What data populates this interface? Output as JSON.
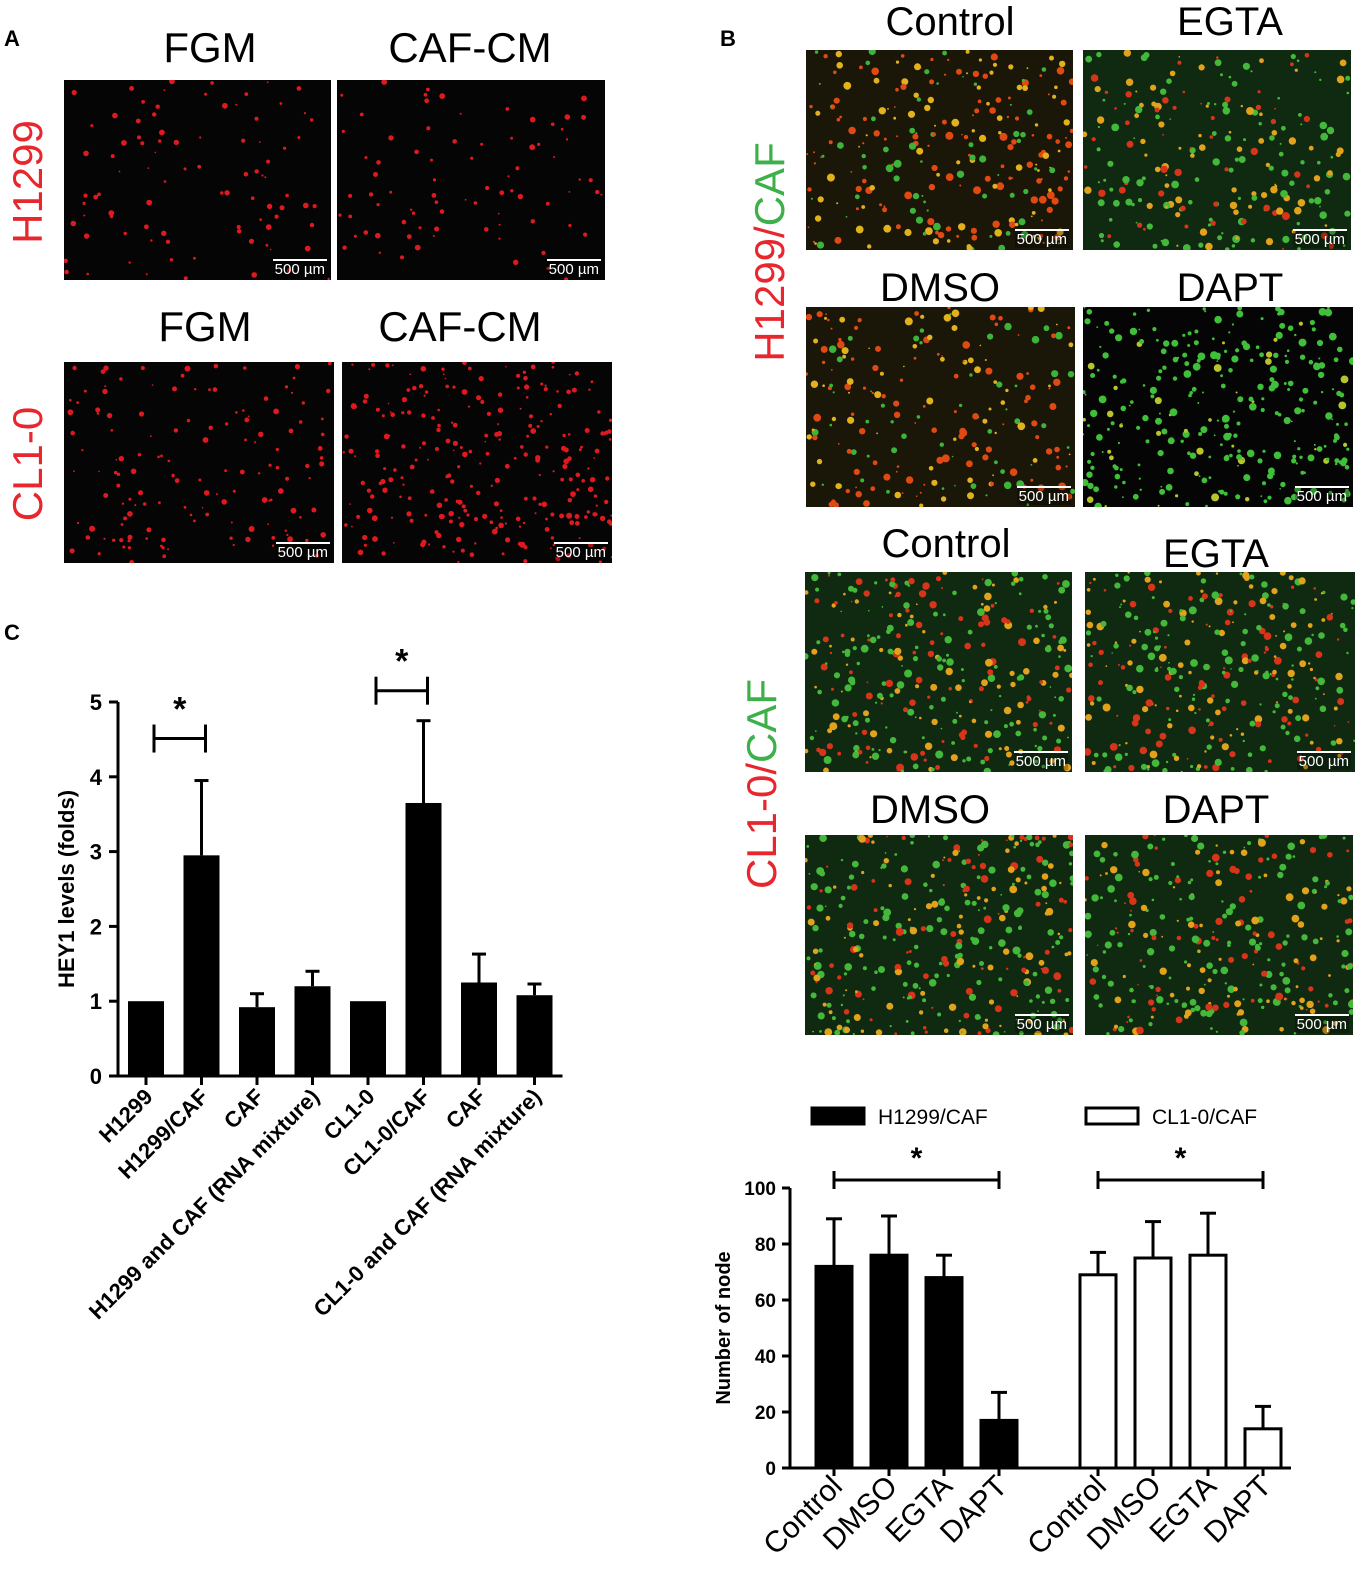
{
  "panels": {
    "a": {
      "letter": "A",
      "rows": [
        {
          "label": "H1299",
          "titles": [
            "FGM",
            "CAF-CM"
          ]
        },
        {
          "label": "CL1-0",
          "titles": [
            "FGM",
            "CAF-CM"
          ]
        }
      ],
      "scalebar": "500 µm"
    },
    "b": {
      "letter": "B",
      "groups": [
        {
          "label_red": "H1299/",
          "label_green": "CAF",
          "titles": [
            "Control",
            "EGTA",
            "DMSO",
            "DAPT"
          ]
        },
        {
          "label_red": "CL1-0/",
          "label_green": "CAF",
          "titles": [
            "Control",
            "EGTA",
            "DMSO",
            "DAPT"
          ]
        }
      ],
      "scalebar": "500 µm"
    },
    "c": {
      "letter": "C"
    }
  },
  "chart_data": [
    {
      "type": "bar",
      "ylabel": "HEY1  levels (folds)",
      "ylim": [
        0,
        5
      ],
      "yticks": [
        "0",
        "1",
        "2",
        "3",
        "4",
        "5"
      ],
      "categories": [
        "H1299",
        "H1299/CAF",
        "CAF",
        "H1299 and CAF (RNA mixture)",
        "CL1-0",
        "CL1-0/CAF",
        "CAF",
        "CL1-0 and CAF (RNA mixture)"
      ],
      "values": [
        1.0,
        2.95,
        0.92,
        1.2,
        1.0,
        3.65,
        1.25,
        1.08
      ],
      "errors": [
        0,
        1.0,
        0.18,
        0.2,
        0,
        1.1,
        0.38,
        0.15
      ],
      "color": "#000000",
      "significance": [
        {
          "from": 0,
          "to": 1,
          "label": "*"
        },
        {
          "from": 4,
          "to": 5,
          "label": "*"
        }
      ]
    },
    {
      "type": "bar",
      "ylabel": "Number of node",
      "ylim": [
        0,
        100
      ],
      "yticks": [
        "0",
        "20",
        "40",
        "60",
        "80",
        "100"
      ],
      "categories": [
        "Control",
        "DMSO",
        "EGTA",
        "DAPT"
      ],
      "legend": [
        "H1299/CAF",
        "CL1-0/CAF"
      ],
      "series": [
        {
          "name": "H1299/CAF",
          "fill": "#000000",
          "values": [
            72,
            76,
            68,
            17
          ],
          "errors": [
            17,
            14,
            8,
            10
          ]
        },
        {
          "name": "CL1-0/CAF",
          "fill": "#ffffff",
          "values": [
            69,
            75,
            76,
            14
          ],
          "errors": [
            8,
            13,
            15,
            8
          ]
        }
      ],
      "significance": [
        {
          "series": 0,
          "from": 0,
          "to": 3,
          "label": "*"
        },
        {
          "series": 1,
          "from": 0,
          "to": 3,
          "label": "*"
        }
      ]
    }
  ]
}
